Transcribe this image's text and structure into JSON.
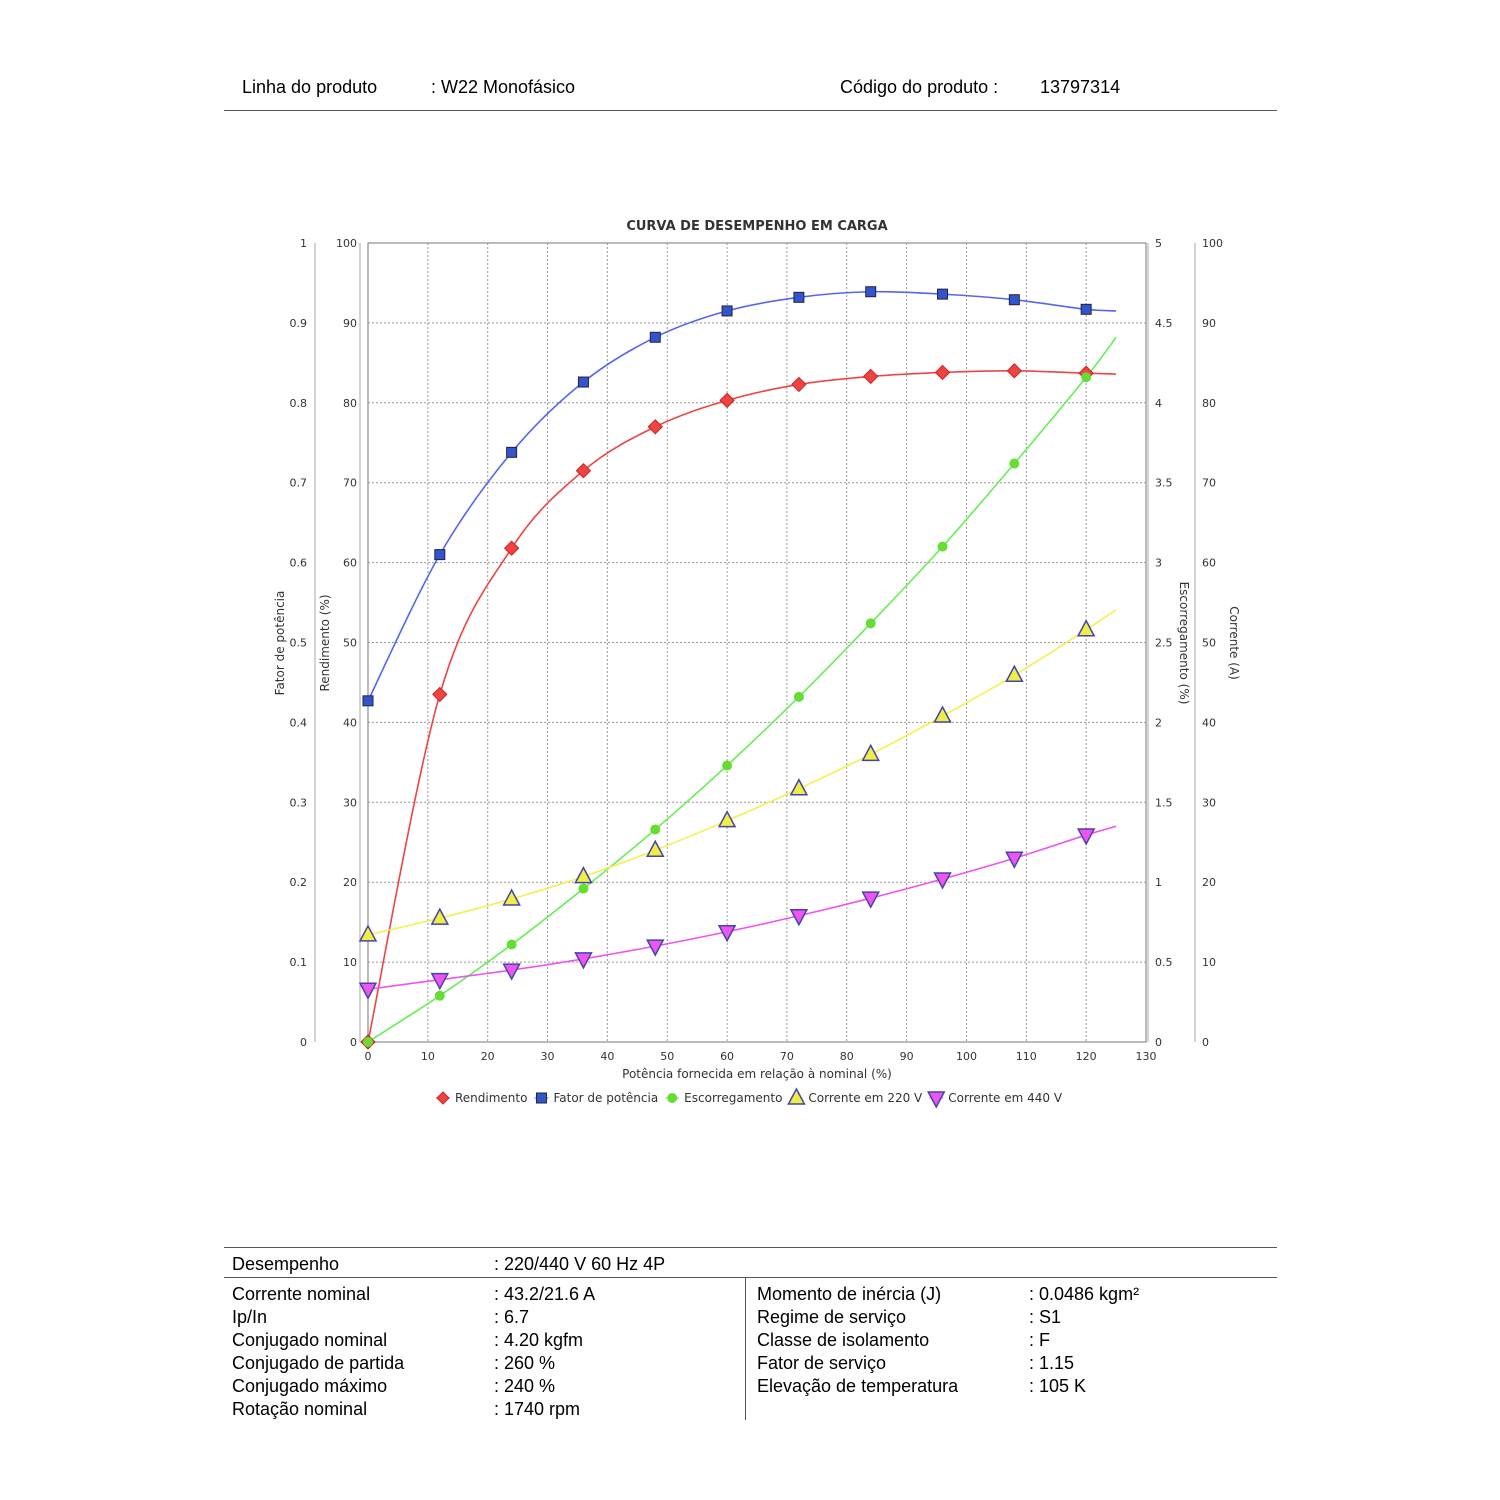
{
  "header": {
    "product_line_label": "Linha do produto",
    "product_line_value": ": W22 Monofásico",
    "product_code_label": "Código do produto :",
    "product_code_value": "13797314"
  },
  "chart_data": {
    "type": "line",
    "title": "CURVA DE DESEMPENHO EM CARGA",
    "xlabel": "Potência fornecida em relação à nominal (%)",
    "xlim": [
      0,
      130
    ],
    "xticks": [
      "0",
      "10",
      "20",
      "30",
      "40",
      "50",
      "60",
      "70",
      "80",
      "90",
      "100",
      "110",
      "120",
      "130"
    ],
    "axes": {
      "fator": {
        "label": "Fator de potência",
        "range": [
          0,
          1
        ],
        "ticks": [
          "0",
          "0.1",
          "0.2",
          "0.3",
          "0.4",
          "0.5",
          "0.6",
          "0.7",
          "0.8",
          "0.9",
          "1"
        ]
      },
      "rendimento": {
        "label": "Rendimento (%)",
        "range": [
          0,
          100
        ],
        "ticks": [
          "0",
          "10",
          "20",
          "30",
          "40",
          "50",
          "60",
          "70",
          "80",
          "90",
          "100"
        ]
      },
      "escorregamento": {
        "label": "Escorregamento (%)",
        "range": [
          0,
          5
        ],
        "ticks": [
          "0",
          "0.5",
          "1",
          "1.5",
          "2",
          "2.5",
          "3",
          "3.5",
          "4",
          "4.5",
          "5"
        ]
      },
      "corrente": {
        "label": "Corrente (A)",
        "range": [
          0,
          100
        ],
        "ticks": [
          "0",
          "10",
          "20",
          "30",
          "40",
          "50",
          "60",
          "70",
          "80",
          "90",
          "100"
        ]
      }
    },
    "grid": true,
    "legend_position": "bottom",
    "x": [
      0,
      12,
      24,
      36,
      48,
      60,
      72,
      84,
      96,
      108,
      120
    ],
    "curve_end_x": 125,
    "series": [
      {
        "name": "Rendimento",
        "axis": "rendimento",
        "color": "#ee4444",
        "marker": "diamond",
        "values": [
          0,
          43.5,
          61.8,
          71.5,
          77.0,
          80.3,
          82.3,
          83.3,
          83.8,
          84.0,
          83.7
        ],
        "curve_end": 83.6
      },
      {
        "name": "Fator de potência",
        "axis": "fator",
        "color": "#3355cc",
        "line": "#5566ee",
        "marker": "square",
        "values": [
          0.427,
          0.61,
          0.738,
          0.826,
          0.882,
          0.915,
          0.932,
          0.939,
          0.936,
          0.929,
          0.917
        ],
        "curve_end": 0.915
      },
      {
        "name": "Escorregamento",
        "axis": "escorregamento",
        "color": "#66dd33",
        "line": "#66ee55",
        "marker": "circle",
        "values": [
          0,
          0.29,
          0.61,
          0.96,
          1.33,
          1.73,
          2.16,
          2.62,
          3.1,
          3.62,
          4.16
        ],
        "curve_end": 4.41
      },
      {
        "name": "Corrente em 220 V",
        "axis": "corrente",
        "color": "#eeee44",
        "line": "#f5f050",
        "marker": "triangle-up",
        "values": [
          13.4,
          15.5,
          17.9,
          20.7,
          24.0,
          27.7,
          31.7,
          36.0,
          40.8,
          45.9,
          51.6
        ],
        "curve_end": 54.1
      },
      {
        "name": "Corrente em 440 V",
        "axis": "corrente",
        "color": "#ee55ee",
        "line": "#ee55ee",
        "marker": "triangle-down",
        "values": [
          6.6,
          7.8,
          9.0,
          10.4,
          12.0,
          13.8,
          15.8,
          18.0,
          20.4,
          23.0,
          25.9
        ],
        "curve_end": 27.0
      }
    ]
  },
  "specs": {
    "desempenho_label": "Desempenho",
    "desempenho_value": ": 220/440 V 60 Hz 4P",
    "left": [
      {
        "label": "Corrente nominal",
        "value": ": 43.2/21.6 A"
      },
      {
        "label": "Ip/In",
        "value": ": 6.7"
      },
      {
        "label": "Conjugado nominal",
        "value": ": 4.20 kgfm"
      },
      {
        "label": "Conjugado de partida",
        "value": ": 260 %"
      },
      {
        "label": "Conjugado máximo",
        "value": ": 240 %"
      },
      {
        "label": "Rotação nominal",
        "value": ": 1740 rpm"
      }
    ],
    "right": [
      {
        "label": "Momento de inércia (J)",
        "value": ": 0.0486 kgm²"
      },
      {
        "label": "Regime de serviço",
        "value": ": S1"
      },
      {
        "label": "Classe de isolamento",
        "value": ": F"
      },
      {
        "label": "Fator de serviço",
        "value": ": 1.15"
      },
      {
        "label": "Elevação de temperatura",
        "value": ": 105 K"
      }
    ]
  }
}
